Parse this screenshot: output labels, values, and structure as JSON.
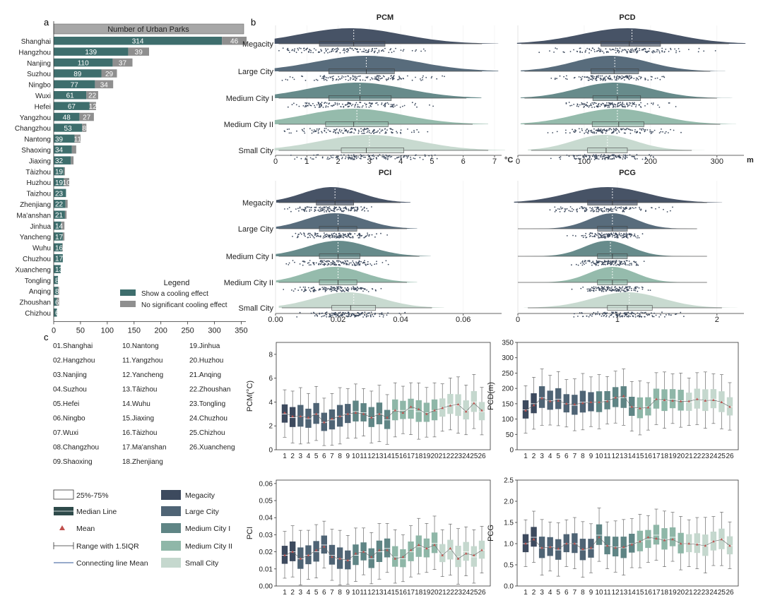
{
  "colors": {
    "cool": "#3e6e6d",
    "nosig": "#8f8f8f",
    "header": "#a7a7a7",
    "cat": [
      "#3d4a5e",
      "#4f6475",
      "#5f8585",
      "#8fb7a8",
      "#c5d8ce"
    ]
  },
  "panel_labels": {
    "a": "a",
    "b": "b",
    "c": "c"
  },
  "chart_data": [
    {
      "id": "a",
      "type": "bar",
      "orientation": "horizontal",
      "stacked": true,
      "title": "Number of Urban Parks",
      "categories": [
        "Shanghai",
        "Hangzhou",
        "Nanjing",
        "Suzhou",
        "Ningbo",
        "Wuxi",
        "Hefei",
        "Yangzhou",
        "Changzhou",
        "Nantong",
        "Shaoxing",
        "Jiaxing",
        "Tàizhou",
        "Huzhou",
        "Taizhou",
        "Zhenjiang",
        "Ma'anshan",
        "Jinhua",
        "Yancheng",
        "Wuhu",
        "Chuzhou",
        "Xuancheng",
        "Tongling",
        "Anqing",
        "Zhoushan",
        "Chizhou"
      ],
      "series": [
        {
          "name": "Show a cooling effect",
          "values": [
            314,
            139,
            110,
            89,
            77,
            61,
            67,
            48,
            53,
            39,
            34,
            32,
            19,
            19,
            23,
            22,
            21,
            14,
            17,
            16,
            17,
            13,
            8,
            8,
            6,
            6
          ],
          "labels": [
            "314",
            "139",
            "110",
            "89",
            "77",
            "61",
            "67",
            "48",
            "53",
            "39",
            "34",
            "32",
            "19",
            "19",
            "23",
            "22",
            "21",
            "14",
            "17",
            "16",
            "17",
            "13",
            "8",
            "8",
            "6",
            "6"
          ]
        },
        {
          "name": "No significant cooling effect",
          "values": [
            46,
            39,
            37,
            29,
            34,
            22,
            12,
            27,
            8,
            11,
            8,
            5,
            2,
            10,
            0,
            4,
            3,
            6,
            3,
            1,
            0,
            0,
            0,
            2,
            4,
            0
          ],
          "labels": [
            "46",
            "39",
            "37",
            "29",
            "34",
            "22",
            "12",
            "27",
            "8",
            "11",
            "",
            "",
            "",
            "10",
            "",
            "",
            "",
            "",
            "",
            "",
            "",
            "",
            "",
            "",
            "",
            ""
          ]
        }
      ],
      "xticks": [
        "0",
        "50",
        "100",
        "150",
        "200",
        "250",
        "300",
        "350"
      ],
      "xlim": [
        0,
        370
      ],
      "legend": {
        "title": "Legend",
        "position": "lower-right"
      }
    },
    {
      "id": "b",
      "type": "raincloud",
      "categories": [
        "Megacity",
        "Large City",
        "Medium City I",
        "Medium City II",
        "Small City"
      ],
      "panels": [
        {
          "title": "PCM",
          "unit": "°C",
          "xlim": [
            0,
            7
          ],
          "xticks": [
            "0",
            "1",
            "2",
            "3",
            "4",
            "5",
            "6",
            "7"
          ],
          "stats": [
            {
              "min": 0.1,
              "q1": 1.4,
              "median": 2.5,
              "q3": 3.5,
              "max": 6.6,
              "mean": 2.5,
              "mode": 2.4
            },
            {
              "min": 0.1,
              "q1": 1.7,
              "median": 2.9,
              "q3": 3.8,
              "max": 6.6,
              "mean": 2.9,
              "mode": 2.9
            },
            {
              "min": 0.1,
              "q1": 1.7,
              "median": 2.7,
              "q3": 3.7,
              "max": 6.1,
              "mean": 2.7,
              "mode": 2.6
            },
            {
              "min": 0.1,
              "q1": 1.6,
              "median": 2.5,
              "q3": 3.6,
              "max": 6.3,
              "mean": 2.6,
              "mode": 2.5
            },
            {
              "min": 0.1,
              "q1": 2.1,
              "median": 2.9,
              "q3": 4.1,
              "max": 6.8,
              "mean": 3.0,
              "mode": 3.0
            }
          ]
        },
        {
          "title": "PCD",
          "unit": "m",
          "xlim": [
            0,
            330
          ],
          "xticks": [
            "0",
            "100",
            "200",
            "300"
          ],
          "stats": [
            {
              "min": 5,
              "q1": 125,
              "median": 168,
              "q3": 215,
              "max": 318,
              "mean": 172,
              "mode": 165
            },
            {
              "min": 10,
              "q1": 110,
              "median": 145,
              "q3": 182,
              "max": 290,
              "mean": 146,
              "mode": 140
            },
            {
              "min": 10,
              "q1": 113,
              "median": 150,
              "q3": 185,
              "max": 300,
              "mean": 150,
              "mode": 145
            },
            {
              "min": 10,
              "q1": 112,
              "median": 152,
              "q3": 190,
              "max": 305,
              "mean": 150,
              "mode": 148
            },
            {
              "min": 20,
              "q1": 105,
              "median": 133,
              "q3": 165,
              "max": 262,
              "mean": 135,
              "mode": 130
            }
          ]
        },
        {
          "title": "PCI",
          "unit": "",
          "xlim": [
            0,
            0.07
          ],
          "xticks": [
            "0.00",
            "0.02",
            "0.04",
            "0.06"
          ],
          "stats": [
            {
              "min": 0.001,
              "q1": 0.013,
              "median": 0.019,
              "q3": 0.025,
              "max": 0.04,
              "mean": 0.019,
              "mode": 0.018
            },
            {
              "min": 0.001,
              "q1": 0.014,
              "median": 0.02,
              "q3": 0.026,
              "max": 0.042,
              "mean": 0.02,
              "mode": 0.019
            },
            {
              "min": 0.001,
              "q1": 0.014,
              "median": 0.02,
              "q3": 0.027,
              "max": 0.046,
              "mean": 0.02,
              "mode": 0.02
            },
            {
              "min": 0.001,
              "q1": 0.014,
              "median": 0.02,
              "q3": 0.026,
              "max": 0.042,
              "mean": 0.02,
              "mode": 0.019
            },
            {
              "min": 0.002,
              "q1": 0.018,
              "median": 0.024,
              "q3": 0.032,
              "max": 0.05,
              "mean": 0.025,
              "mode": 0.023
            }
          ]
        },
        {
          "title": "PCG",
          "unit": "",
          "xlim": [
            0,
            2.2
          ],
          "xticks": [
            "0",
            "1",
            "2"
          ],
          "stats": [
            {
              "min": 0.0,
              "q1": 0.7,
              "median": 0.95,
              "q3": 1.2,
              "max": 1.9,
              "mean": 0.95,
              "mode": 0.9
            },
            {
              "min": 0.0,
              "q1": 0.8,
              "median": 0.95,
              "q3": 1.1,
              "max": 1.8,
              "mean": 0.95,
              "mode": 0.95
            },
            {
              "min": 0.0,
              "q1": 0.8,
              "median": 0.95,
              "q3": 1.1,
              "max": 1.9,
              "mean": 0.93,
              "mode": 0.9
            },
            {
              "min": 0.0,
              "q1": 0.8,
              "median": 0.95,
              "q3": 1.1,
              "max": 1.9,
              "mean": 0.95,
              "mode": 0.95
            },
            {
              "min": 0.1,
              "q1": 0.9,
              "median": 1.1,
              "q3": 1.35,
              "max": 2.05,
              "mean": 1.12,
              "mode": 1.1
            }
          ]
        }
      ]
    },
    {
      "id": "c",
      "type": "box",
      "x": [
        "1",
        "2",
        "3",
        "4",
        "5",
        "6",
        "7",
        "8",
        "9",
        "10",
        "11",
        "12",
        "13",
        "14",
        "15",
        "16",
        "17",
        "18",
        "19",
        "20",
        "21",
        "22",
        "23",
        "24",
        "25",
        "26"
      ],
      "city_class": [
        0,
        0,
        1,
        1,
        1,
        1,
        1,
        1,
        1,
        2,
        2,
        2,
        2,
        2,
        3,
        3,
        3,
        3,
        3,
        3,
        4,
        4,
        4,
        4,
        4,
        4
      ],
      "city_index": [
        "01.Shanghai",
        "02.Hangzhou",
        "03.Nanjing",
        "04.Suzhou",
        "05.Hefei",
        "06.Ningbo",
        "07.Wuxi",
        "08.Changzhou",
        "09.Shaoxing",
        "10.Nantong",
        "11.Yangzhou",
        "12.Yancheng",
        "13.Tâizhou",
        "14.Wuhu",
        "15.Jiaxing",
        "16.Tàizhou",
        "17.Ma'anshan",
        "18.Zhenjiang",
        "19.Jinhua",
        "20.Huzhou",
        "21.Anqing",
        "22.Zhoushan",
        "23.Tongling",
        "24.Chuzhou",
        "25.Chizhou",
        "26.Xuancheng"
      ],
      "panels": [
        {
          "ylabel": "PCM(°C)",
          "ylim": [
            0,
            9
          ],
          "yticks": [
            "0",
            "2",
            "4",
            "6",
            "8"
          ],
          "ytick_values": [
            0,
            2,
            4,
            6,
            8
          ],
          "median": [
            3.0,
            2.7,
            2.8,
            2.6,
            3.0,
            2.3,
            2.5,
            2.8,
            3.0,
            3.2,
            3.1,
            2.7,
            3.0,
            2.5,
            3.3,
            3.3,
            3.4,
            3.2,
            3.1,
            3.3,
            3.5,
            3.8,
            3.7,
            3.3,
            4.0,
            3.2
          ],
          "mean": [
            3.1,
            2.8,
            2.8,
            2.7,
            3.0,
            2.3,
            2.6,
            2.8,
            3.0,
            3.1,
            3.0,
            2.7,
            3.0,
            2.7,
            3.3,
            3.1,
            3.6,
            3.4,
            3.0,
            3.3,
            3.5,
            3.7,
            3.8,
            3.2,
            3.9,
            3.3
          ]
        },
        {
          "ylabel": "PCD(m)",
          "ylim": [
            0,
            350
          ],
          "yticks": [
            "0",
            "50",
            "100",
            "150",
            "200",
            "250",
            "300",
            "350"
          ],
          "ytick_values": [
            0,
            50,
            100,
            150,
            200,
            250,
            300,
            350
          ],
          "median": [
            130,
            150,
            170,
            160,
            165,
            150,
            145,
            155,
            155,
            155,
            160,
            170,
            170,
            140,
            135,
            140,
            165,
            160,
            165,
            160,
            155,
            165,
            160,
            165,
            155,
            140
          ],
          "mean": [
            128,
            145,
            168,
            158,
            160,
            150,
            148,
            152,
            155,
            155,
            158,
            170,
            175,
            140,
            135,
            138,
            165,
            162,
            160,
            158,
            158,
            165,
            160,
            162,
            155,
            140
          ]
        },
        {
          "ylabel": "PCI",
          "ylim": [
            0,
            0.062
          ],
          "yticks": [
            "0.00",
            "0.01",
            "0.02",
            "0.03",
            "0.04",
            "0.05",
            "0.06"
          ],
          "ytick_values": [
            0,
            0.01,
            0.02,
            0.03,
            0.04,
            0.05,
            0.06
          ],
          "median": [
            0.018,
            0.02,
            0.016,
            0.018,
            0.02,
            0.024,
            0.018,
            0.016,
            0.015,
            0.018,
            0.02,
            0.016,
            0.02,
            0.022,
            0.017,
            0.016,
            0.02,
            0.023,
            0.022,
            0.025,
            0.019,
            0.021,
            0.017,
            0.02,
            0.017,
            0.021
          ],
          "mean": [
            0.018,
            0.02,
            0.016,
            0.018,
            0.021,
            0.023,
            0.017,
            0.016,
            0.015,
            0.019,
            0.02,
            0.017,
            0.021,
            0.021,
            0.016,
            0.017,
            0.021,
            0.024,
            0.022,
            0.024,
            0.018,
            0.022,
            0.016,
            0.019,
            0.018,
            0.021
          ]
        },
        {
          "ylabel": "PCG",
          "ylim": [
            0,
            2.5
          ],
          "yticks": [
            "0.0",
            "0.5",
            "1.0",
            "1.5",
            "2.0",
            "2.5"
          ],
          "ytick_values": [
            0,
            0.5,
            1,
            1.5,
            2,
            2.5
          ],
          "median": [
            1.0,
            1.15,
            0.9,
            0.92,
            0.85,
            1.0,
            1.0,
            0.85,
            0.88,
            1.2,
            0.95,
            0.92,
            0.9,
            1.0,
            1.05,
            1.1,
            1.2,
            1.1,
            1.15,
            1.0,
            1.0,
            1.0,
            0.95,
            1.05,
            1.1,
            0.95
          ],
          "mean": [
            1.0,
            1.1,
            0.9,
            0.92,
            0.88,
            1.0,
            1.0,
            0.87,
            0.9,
            1.15,
            0.95,
            0.9,
            0.92,
            0.98,
            1.05,
            1.15,
            1.12,
            1.08,
            1.1,
            1.0,
            1.0,
            0.98,
            0.95,
            1.05,
            1.1,
            0.95
          ]
        }
      ],
      "legend_items": [
        {
          "label": "25%-75%",
          "kind": "box"
        },
        {
          "label": "Median Line",
          "kind": "median"
        },
        {
          "label": "Mean",
          "kind": "mean"
        },
        {
          "label": "Range with 1.5IQR",
          "kind": "range"
        },
        {
          "label": "Connecting line Mean",
          "kind": "line"
        }
      ],
      "class_legend": [
        "Megacity",
        "Large City",
        "Medium City I",
        "Medium City II",
        "Small City"
      ]
    }
  ]
}
